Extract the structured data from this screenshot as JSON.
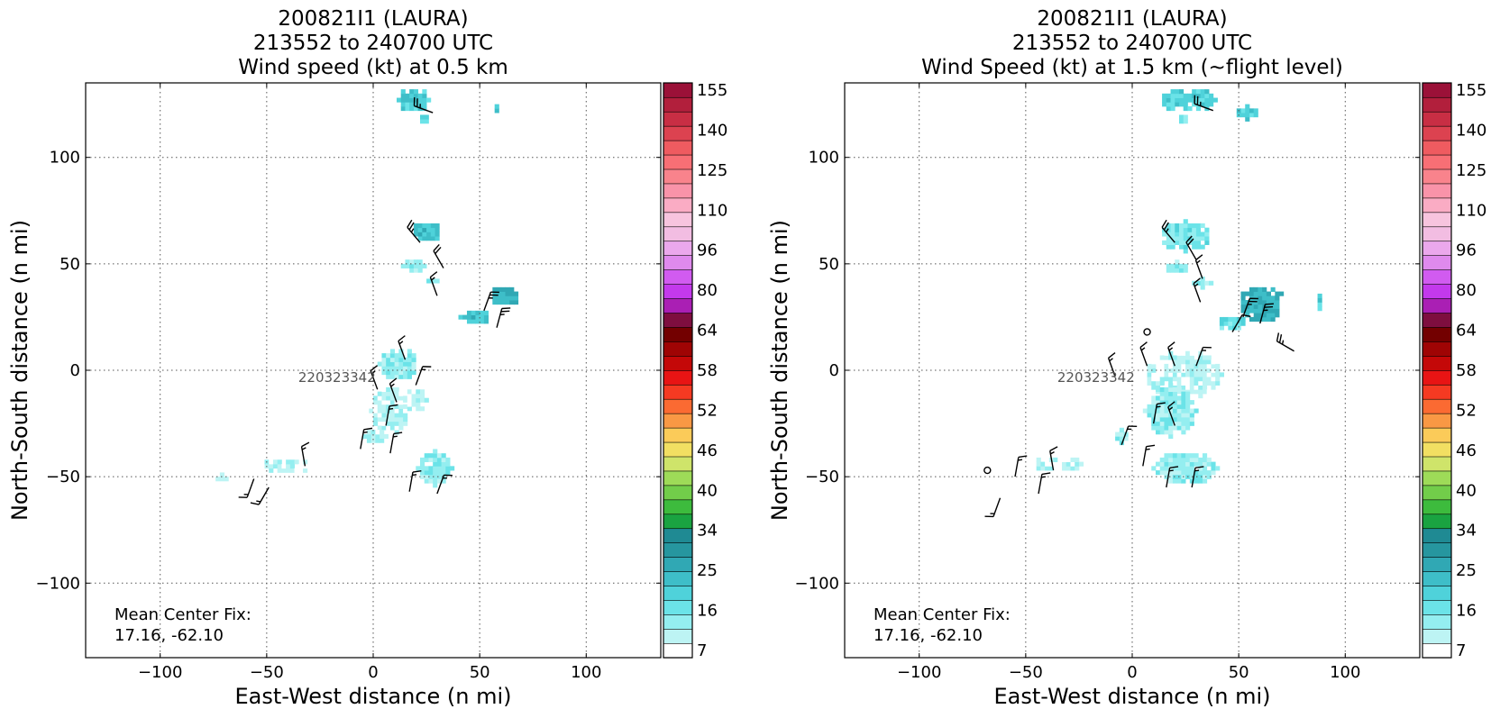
{
  "figure": {
    "colors": {
      "frame": "#000000",
      "grid": "#555555",
      "barb": "#000000",
      "label": "#555555"
    },
    "colorbar": {
      "ticks": [
        "155",
        "140",
        "125",
        "110",
        "96",
        "80",
        "64",
        "58",
        "52",
        "46",
        "40",
        "34",
        "25",
        "16",
        "7"
      ],
      "colors_bottom_to_top": [
        "#ffffff",
        "#bdf4f4",
        "#94eef0",
        "#6be3e8",
        "#4fd2da",
        "#3ebec8",
        "#30a8b4",
        "#26969f",
        "#1f8a93",
        "#1aa341",
        "#3dbb3d",
        "#72cd4a",
        "#9edb58",
        "#cfe46a",
        "#f2df62",
        "#fbcb59",
        "#f99844",
        "#fb6a32",
        "#f53a22",
        "#e81414",
        "#c40808",
        "#9f0404",
        "#730000",
        "#7e0e3f",
        "#aa1fb4",
        "#c339ec",
        "#d15bf0",
        "#df8aed",
        "#eba8ec",
        "#f2bde2",
        "#f7c4de",
        "#faacc4",
        "#f993a9",
        "#f9838c",
        "#f86f75",
        "#ef5b60",
        "#dc4250",
        "#c82e44",
        "#b21f3c",
        "#9b1138"
      ]
    },
    "chart_data": [
      {
        "type": "heatmap",
        "title": [
          "200821I1 (LAURA)",
          "213552 to 240700 UTC",
          "Wind speed (kt) at 0.5 km"
        ],
        "xlabel": "East-West distance (n mi)",
        "ylabel": "North-South distance (n mi)",
        "xlim": [
          -135,
          135
        ],
        "ylim": [
          -135,
          135
        ],
        "xticks": [
          -100,
          -50,
          0,
          50,
          100
        ],
        "yticks": [
          -100,
          -50,
          0,
          50,
          100
        ],
        "grid": true,
        "annotation": [
          "Mean Center Fix:",
          "17.16, -62.10"
        ],
        "time_label": {
          "text": "220323342",
          "x": -17,
          "y": -3
        },
        "patches": [
          {
            "x": 18,
            "y": 126,
            "rx": 7,
            "ry": 6,
            "v": 21
          },
          {
            "x": 23,
            "y": 117,
            "rx": 3,
            "ry": 3,
            "v": 21
          },
          {
            "x": 57,
            "y": 122,
            "rx": 2,
            "ry": 1,
            "v": 21
          },
          {
            "x": 24,
            "y": 64,
            "rx": 7,
            "ry": 5,
            "v": 24
          },
          {
            "x": 18,
            "y": 48,
            "rx": 5,
            "ry": 4,
            "v": 13
          },
          {
            "x": 28,
            "y": 41,
            "rx": 3,
            "ry": 2,
            "v": 13
          },
          {
            "x": 47,
            "y": 24,
            "rx": 7,
            "ry": 4,
            "v": 24
          },
          {
            "x": 61,
            "y": 34,
            "rx": 7,
            "ry": 5,
            "v": 27
          },
          {
            "x": 11,
            "y": 2,
            "rx": 9,
            "ry": 8,
            "v": 13
          },
          {
            "x": 7,
            "y": -20,
            "rx": 9,
            "ry": 12,
            "v": 10
          },
          {
            "x": 19,
            "y": -15,
            "rx": 5,
            "ry": 6,
            "v": 10
          },
          {
            "x": 0,
            "y": -32,
            "rx": 5,
            "ry": 4,
            "v": 10
          },
          {
            "x": 28,
            "y": -47,
            "rx": 8,
            "ry": 8,
            "v": 13
          },
          {
            "x": -42,
            "y": -46,
            "rx": 11,
            "ry": 4,
            "v": 9
          },
          {
            "x": -72,
            "y": -52,
            "rx": 2,
            "ry": 2,
            "v": 9
          }
        ],
        "barbs": [
          {
            "x": 28,
            "y": 121,
            "s": 25,
            "d": 290
          },
          {
            "x": 22,
            "y": 60,
            "s": 25,
            "d": 320
          },
          {
            "x": 33,
            "y": 48,
            "s": 20,
            "d": 330
          },
          {
            "x": 30,
            "y": 35,
            "s": 15,
            "d": 340
          },
          {
            "x": 52,
            "y": 28,
            "s": 25,
            "d": 20
          },
          {
            "x": 58,
            "y": 20,
            "s": 25,
            "d": 15
          },
          {
            "x": 15,
            "y": 5,
            "s": 15,
            "d": 340
          },
          {
            "x": 20,
            "y": -7,
            "s": 15,
            "d": 20
          },
          {
            "x": 2,
            "y": -9,
            "s": 15,
            "d": 340
          },
          {
            "x": 11,
            "y": -15,
            "s": 15,
            "d": 340
          },
          {
            "x": 6,
            "y": -26,
            "s": 15,
            "d": 10
          },
          {
            "x": 8,
            "y": -39,
            "s": 15,
            "d": 10
          },
          {
            "x": -6,
            "y": -37,
            "s": 15,
            "d": 10
          },
          {
            "x": 17,
            "y": -57,
            "s": 15,
            "d": 10
          },
          {
            "x": 30,
            "y": -58,
            "s": 15,
            "d": 20
          },
          {
            "x": -32,
            "y": -45,
            "s": 15,
            "d": 350
          },
          {
            "x": -56,
            "y": -51,
            "s": 15,
            "d": 200
          },
          {
            "x": -49,
            "y": -55,
            "s": 15,
            "d": 210
          }
        ]
      },
      {
        "type": "heatmap",
        "title": [
          "200821I1 (LAURA)",
          "213552 to 240700 UTC",
          "Wind Speed (kt) at 1.5 km (~flight level)"
        ],
        "xlabel": "East-West distance (n mi)",
        "ylabel": "North-South distance (n mi)",
        "xlim": [
          -135,
          135
        ],
        "ylim": [
          -135,
          135
        ],
        "xticks": [
          -100,
          -50,
          0,
          50,
          100
        ],
        "yticks": [
          -100,
          -50,
          0,
          50,
          100
        ],
        "grid": true,
        "annotation": [
          "Mean Center Fix:",
          "17.16, -62.10"
        ],
        "time_label": {
          "text": "220323342",
          "x": -17,
          "y": -3
        },
        "patches": [
          {
            "x": 25,
            "y": 126,
            "rx": 13,
            "ry": 6,
            "v": 21
          },
          {
            "x": 23,
            "y": 117,
            "rx": 3,
            "ry": 3,
            "v": 16
          },
          {
            "x": 53,
            "y": 120,
            "rx": 6,
            "ry": 3,
            "v": 21
          },
          {
            "x": 24,
            "y": 62,
            "rx": 12,
            "ry": 7,
            "v": 16
          },
          {
            "x": 20,
            "y": 47,
            "rx": 6,
            "ry": 3,
            "v": 13
          },
          {
            "x": 32,
            "y": 40,
            "rx": 4,
            "ry": 2,
            "v": 13
          },
          {
            "x": 60,
            "y": 30,
            "rx": 11,
            "ry": 9,
            "v": 27
          },
          {
            "x": 46,
            "y": 21,
            "rx": 7,
            "ry": 4,
            "v": 18
          },
          {
            "x": 78,
            "y": 50,
            "rx": 1,
            "ry": 3,
            "v": 21
          },
          {
            "x": 87,
            "y": 31,
            "rx": 2,
            "ry": 3,
            "v": 21
          },
          {
            "x": 23,
            "y": -3,
            "rx": 18,
            "ry": 12,
            "v": 9
          },
          {
            "x": 17,
            "y": -20,
            "rx": 12,
            "ry": 12,
            "v": 13
          },
          {
            "x": -6,
            "y": -32,
            "rx": 4,
            "ry": 3,
            "v": 13
          },
          {
            "x": 24,
            "y": -47,
            "rx": 15,
            "ry": 8,
            "v": 13
          },
          {
            "x": -36,
            "y": -45,
            "rx": 11,
            "ry": 4,
            "v": 9
          }
        ],
        "barbs": [
          {
            "x": 38,
            "y": 122,
            "s": 25,
            "d": 290
          },
          {
            "x": 20,
            "y": 60,
            "s": 25,
            "d": 320
          },
          {
            "x": 30,
            "y": 52,
            "s": 20,
            "d": 330
          },
          {
            "x": 33,
            "y": 43,
            "s": 15,
            "d": 340
          },
          {
            "x": 32,
            "y": 32,
            "s": 15,
            "d": 340
          },
          {
            "x": 52,
            "y": 25,
            "s": 25,
            "d": 20
          },
          {
            "x": 60,
            "y": 22,
            "s": 25,
            "d": 15
          },
          {
            "x": 76,
            "y": 9,
            "s": 25,
            "d": 300
          },
          {
            "x": 47,
            "y": 18,
            "s": 10,
            "d": 30
          },
          {
            "x": 7,
            "y": 2,
            "s": 15,
            "d": 340
          },
          {
            "x": 20,
            "y": 2,
            "s": 15,
            "d": 340
          },
          {
            "x": 30,
            "y": 2,
            "s": 15,
            "d": 20
          },
          {
            "x": -8,
            "y": -3,
            "s": 15,
            "d": 340
          },
          {
            "x": 10,
            "y": -25,
            "s": 15,
            "d": 10
          },
          {
            "x": 20,
            "y": -26,
            "s": 15,
            "d": 340
          },
          {
            "x": -5,
            "y": -35,
            "s": 15,
            "d": 20
          },
          {
            "x": 5,
            "y": -45,
            "s": 15,
            "d": 10
          },
          {
            "x": 16,
            "y": -55,
            "s": 15,
            "d": 10
          },
          {
            "x": 28,
            "y": -55,
            "s": 15,
            "d": 10
          },
          {
            "x": -37,
            "y": -47,
            "s": 15,
            "d": 350
          },
          {
            "x": -55,
            "y": -50,
            "s": 15,
            "d": 10
          },
          {
            "x": -62,
            "y": -60,
            "s": 15,
            "d": 200
          },
          {
            "x": -44,
            "y": -58,
            "s": 15,
            "d": 10
          }
        ],
        "calm": [
          {
            "x": 7,
            "y": 18
          },
          {
            "x": -68,
            "y": -47
          }
        ]
      }
    ]
  }
}
